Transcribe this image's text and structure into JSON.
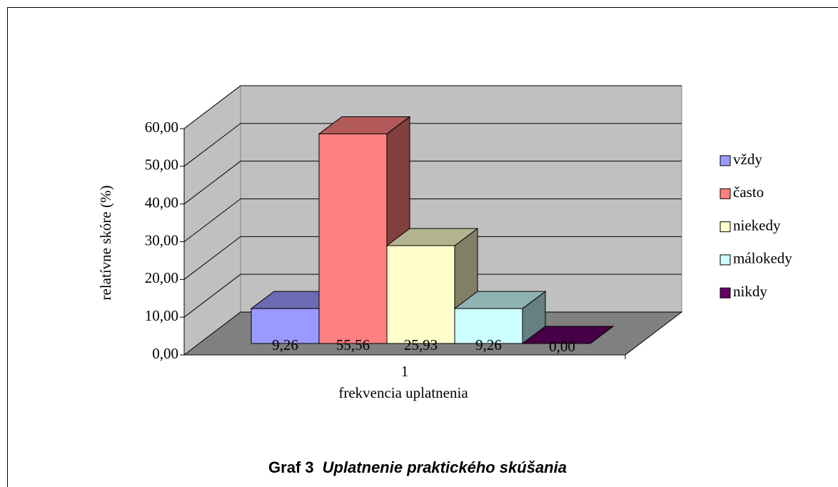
{
  "chart_data": {
    "type": "bar",
    "figure_label": "Graf 3",
    "title": "Uplatnenie praktického skúšania",
    "xlabel": "frekvencia uplatnenia",
    "ylabel": "relatívne skóre (%)",
    "categories": [
      "1"
    ],
    "series": [
      {
        "name": "vždy",
        "color": "#9999ff",
        "values": [
          9.26
        ],
        "value_labels": [
          "9,26"
        ]
      },
      {
        "name": "často",
        "color": "#ff8080",
        "values": [
          55.56
        ],
        "value_labels": [
          "55,56"
        ]
      },
      {
        "name": "niekedy",
        "color": "#ffffcc",
        "values": [
          25.93
        ],
        "value_labels": [
          "25,93"
        ]
      },
      {
        "name": "málokedy",
        "color": "#ccffff",
        "values": [
          9.26
        ],
        "value_labels": [
          "9,26"
        ]
      },
      {
        "name": "nikdy",
        "color": "#660066",
        "values": [
          0
        ],
        "value_labels": [
          "0,00"
        ]
      }
    ],
    "ylim": [
      0,
      60
    ],
    "yticks": [
      {
        "value": 0,
        "label": "0,00"
      },
      {
        "value": 10,
        "label": "10,00"
      },
      {
        "value": 20,
        "label": "20,00"
      },
      {
        "value": 30,
        "label": "30,00"
      },
      {
        "value": 40,
        "label": "40,00"
      },
      {
        "value": 50,
        "label": "50,00"
      },
      {
        "value": 60,
        "label": "60,00"
      }
    ],
    "grid": true,
    "legend": "right"
  }
}
